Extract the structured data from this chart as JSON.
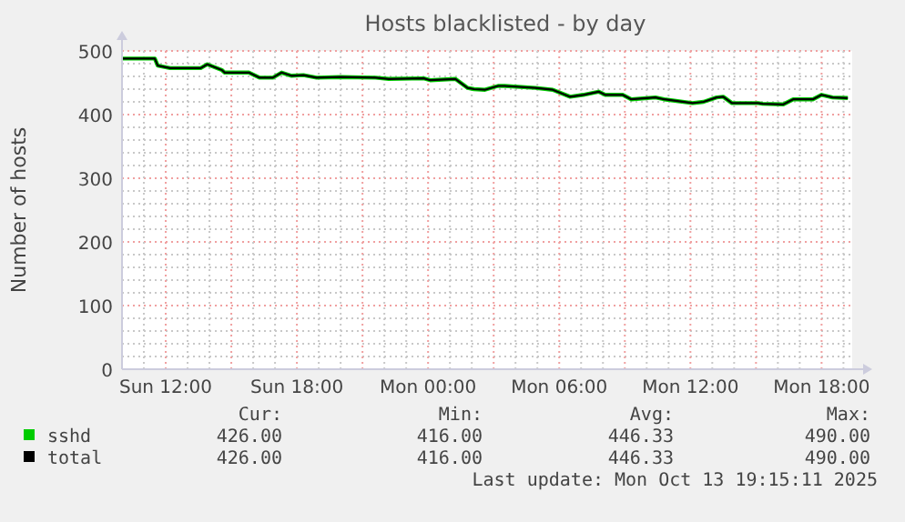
{
  "chart_data": {
    "type": "line",
    "title": "Hosts blacklisted - by day",
    "ylabel": "Number of hosts",
    "x": [
      "2025-10-12T10:00",
      "2025-10-12T11:30",
      "2025-10-12T11:38",
      "2025-10-12T12:12",
      "2025-10-12T13:36",
      "2025-10-12T13:54",
      "2025-10-12T14:34",
      "2025-10-12T14:42",
      "2025-10-12T15:48",
      "2025-10-12T16:18",
      "2025-10-12T16:54",
      "2025-10-12T17:18",
      "2025-10-12T17:45",
      "2025-10-12T18:18",
      "2025-10-12T18:54",
      "2025-10-12T20:00",
      "2025-10-12T21:36",
      "2025-10-12T22:12",
      "2025-10-12T23:48",
      "2025-10-13T00:06",
      "2025-10-13T01:15",
      "2025-10-13T01:48",
      "2025-10-13T02:06",
      "2025-10-13T02:36",
      "2025-10-13T03:12",
      "2025-10-13T03:30",
      "2025-10-13T04:54",
      "2025-10-13T05:42",
      "2025-10-13T06:30",
      "2025-10-13T07:06",
      "2025-10-13T07:48",
      "2025-10-13T08:06",
      "2025-10-13T08:54",
      "2025-10-13T09:18",
      "2025-10-13T10:24",
      "2025-10-13T10:48",
      "2025-10-13T12:06",
      "2025-10-13T12:36",
      "2025-10-13T13:12",
      "2025-10-13T13:30",
      "2025-10-13T13:54",
      "2025-10-13T15:06",
      "2025-10-13T15:18",
      "2025-10-13T16:15",
      "2025-10-13T16:42",
      "2025-10-13T17:36",
      "2025-10-13T18:00",
      "2025-10-13T18:30",
      "2025-10-13T19:12"
    ],
    "series": [
      {
        "name": "sshd",
        "color": "#00cc00",
        "values": [
          488,
          488,
          477,
          473,
          473,
          479,
          470,
          466,
          466,
          458,
          458,
          466,
          461,
          462,
          458,
          459,
          458,
          456,
          457,
          454,
          456,
          442,
          440,
          439,
          445,
          445,
          442,
          439,
          428,
          431,
          436,
          431,
          431,
          424,
          427,
          424,
          418,
          420,
          427,
          428,
          418,
          418,
          417,
          416,
          424,
          424,
          431,
          427,
          426
        ]
      },
      {
        "name": "total",
        "color": "#000000",
        "values": [
          488,
          488,
          477,
          473,
          473,
          479,
          470,
          466,
          466,
          458,
          458,
          466,
          461,
          462,
          458,
          459,
          458,
          456,
          457,
          454,
          456,
          442,
          440,
          439,
          445,
          445,
          442,
          439,
          428,
          431,
          436,
          431,
          431,
          424,
          427,
          424,
          418,
          420,
          427,
          428,
          418,
          418,
          417,
          416,
          424,
          424,
          431,
          427,
          426
        ]
      }
    ],
    "xlim": [
      "2025-10-12T10:00",
      "2025-10-13T19:24"
    ],
    "xticks": [
      {
        "value": "2025-10-12T12:00",
        "label": "Sun 12:00"
      },
      {
        "value": "2025-10-12T18:00",
        "label": "Sun 18:00"
      },
      {
        "value": "2025-10-13T00:00",
        "label": "Mon 00:00"
      },
      {
        "value": "2025-10-13T06:00",
        "label": "Mon 06:00"
      },
      {
        "value": "2025-10-13T12:00",
        "label": "Mon 12:00"
      },
      {
        "value": "2025-10-13T18:00",
        "label": "Mon 18:00"
      }
    ],
    "ylim": [
      0,
      500
    ],
    "yticks": [
      0,
      100,
      200,
      300,
      400,
      500
    ],
    "grid": true,
    "legend": "bottom",
    "marker": "none",
    "line_style": "solid",
    "annotations": [
      "Cur:",
      "Min:",
      "Avg:",
      "Max:",
      "426.00",
      "416.00",
      "446.33",
      "490.00",
      "426.00",
      "416.00",
      "446.33",
      "490.00",
      "Last update: Mon Oct 13 19:15:11 2025"
    ]
  }
}
